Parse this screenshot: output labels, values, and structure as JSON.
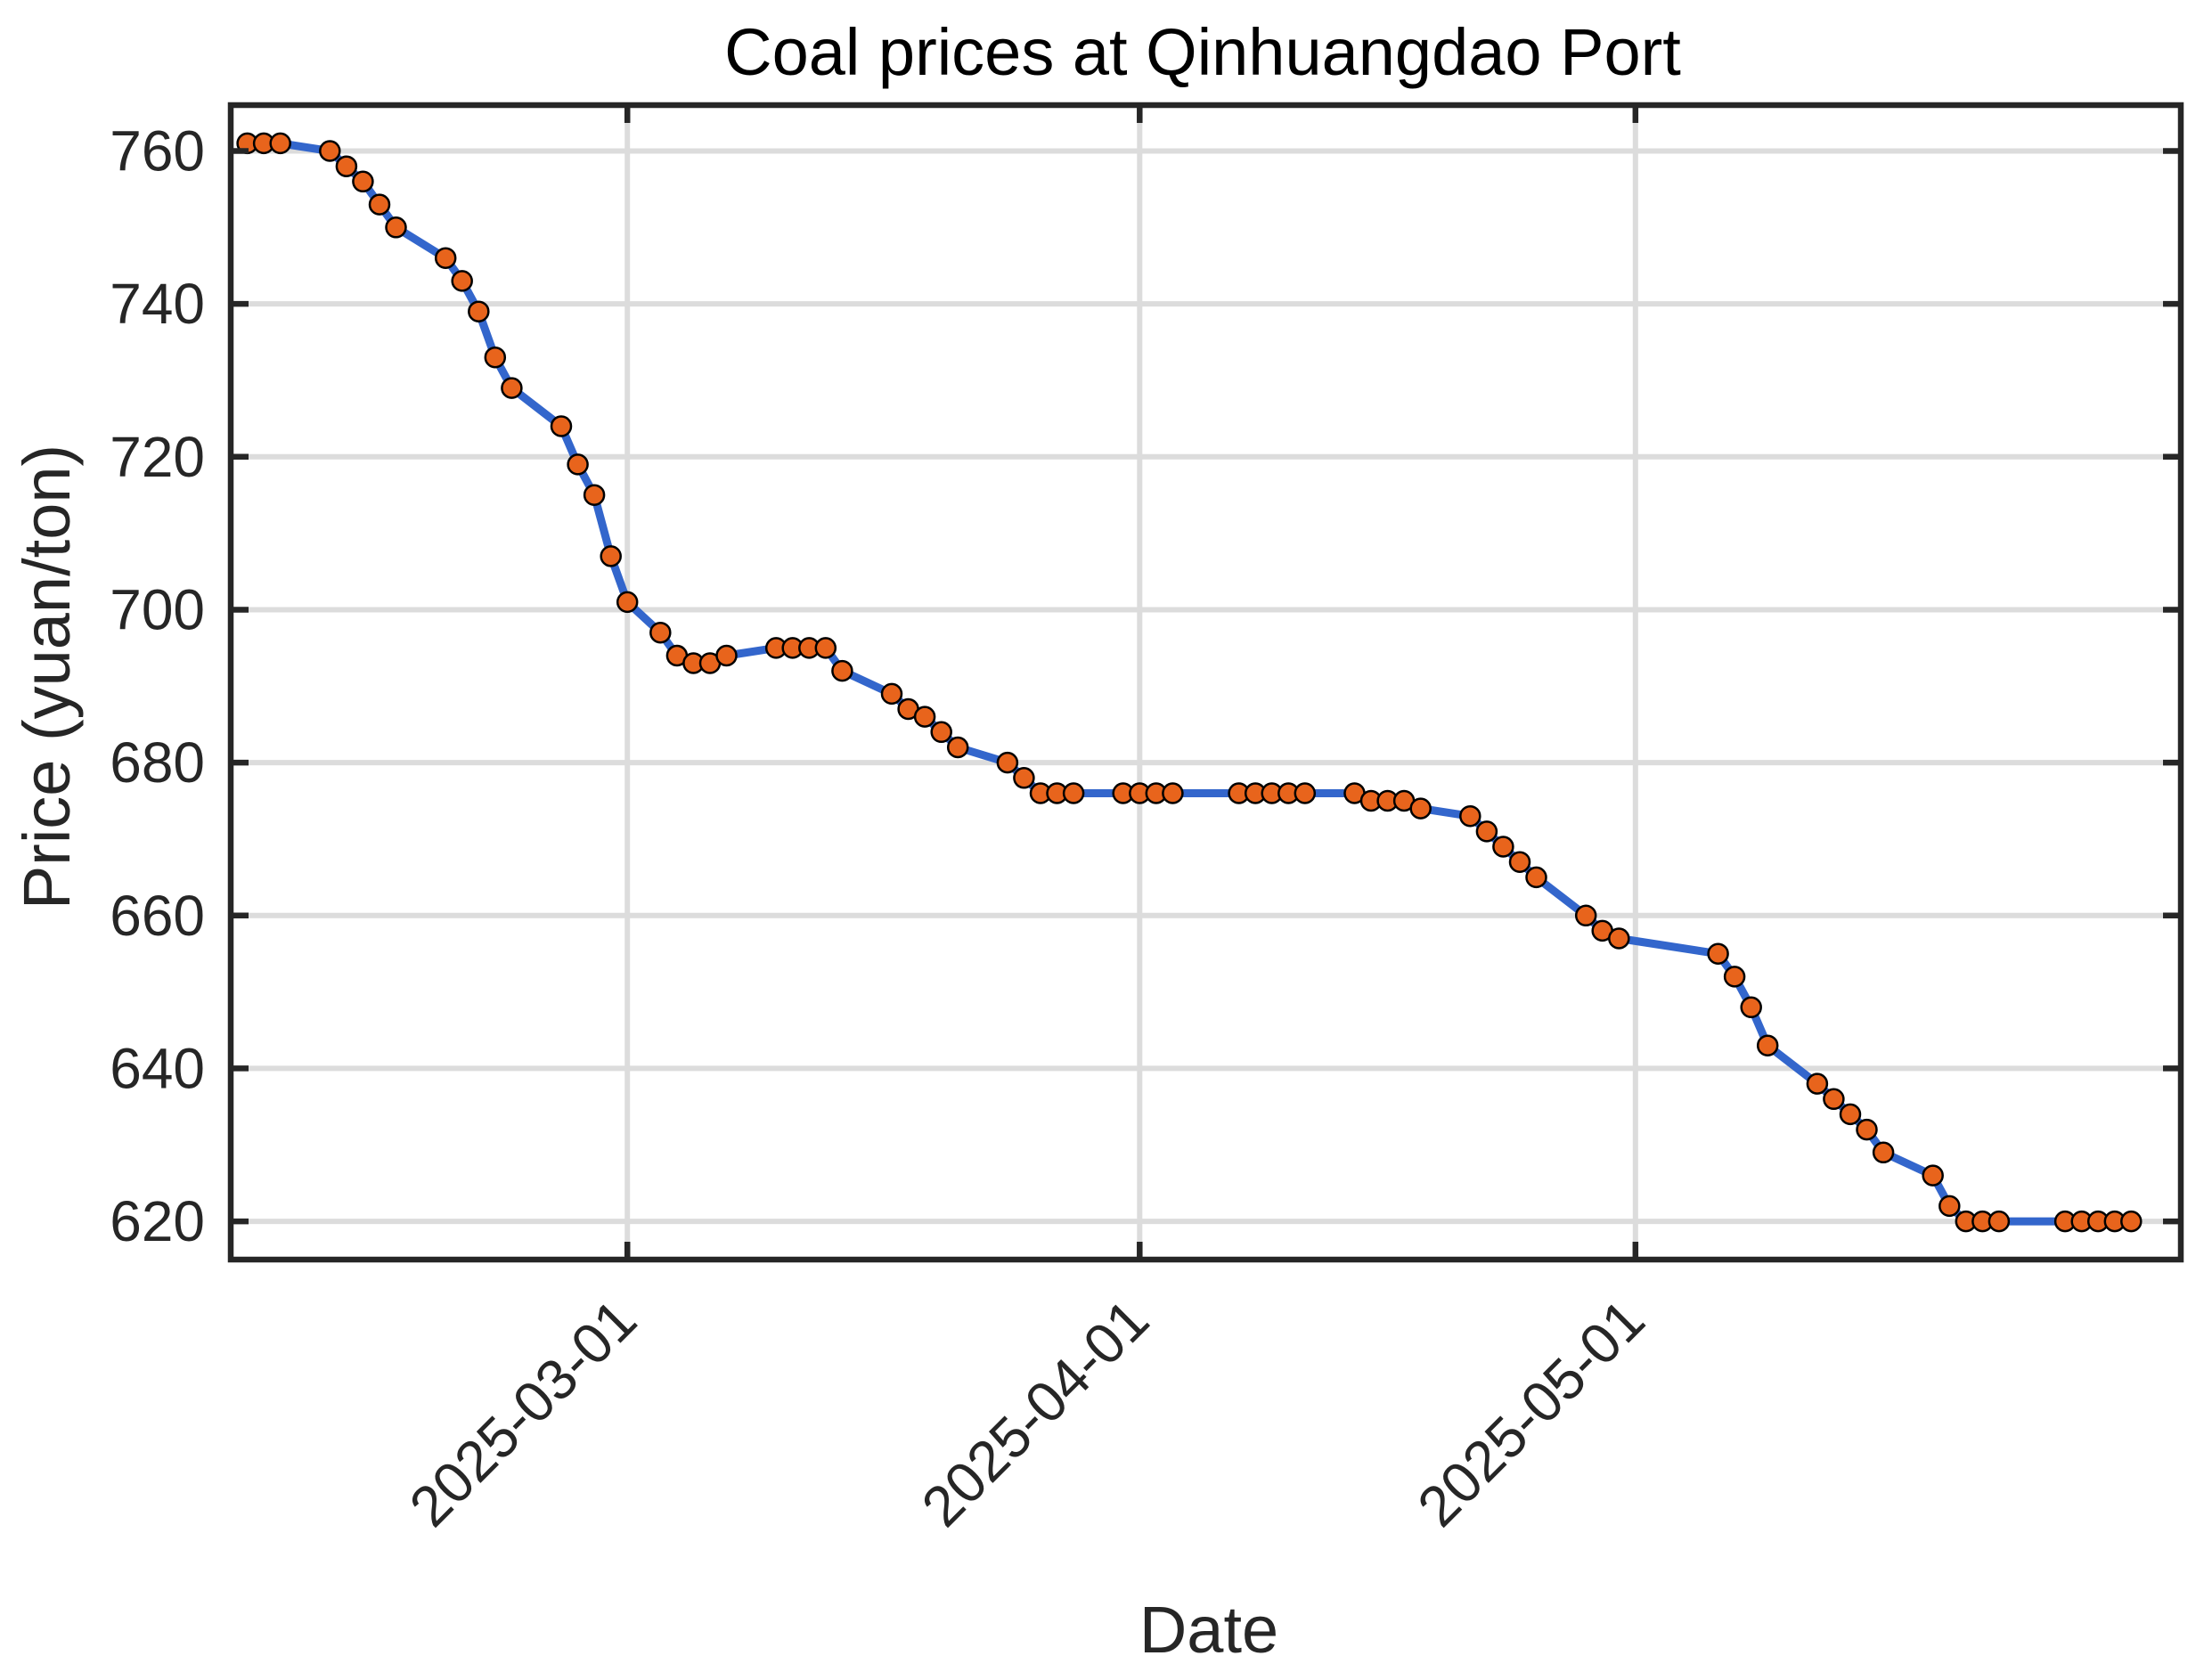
{
  "chart_data": {
    "type": "line",
    "title": "Coal prices at Qinhuangdao Port",
    "xlabel": "Date",
    "ylabel": "Price (yuan/ton)",
    "xlim": [
      "2025-02-05",
      "2025-06-03"
    ],
    "ylim": [
      615,
      766
    ],
    "x_ticks": [
      "2025-03-01",
      "2025-04-01",
      "2025-05-01"
    ],
    "y_ticks": [
      620,
      640,
      660,
      680,
      700,
      720,
      740,
      760
    ],
    "grid": true,
    "legend": "none",
    "colors": {
      "line": "#3366cc",
      "marker_fill": "#e8641c",
      "marker_edge": "#000000"
    },
    "series": [
      {
        "x": [
          "2025-02-06",
          "2025-02-07",
          "2025-02-08",
          "2025-02-11",
          "2025-02-12",
          "2025-02-13",
          "2025-02-14",
          "2025-02-15",
          "2025-02-18",
          "2025-02-19",
          "2025-02-20",
          "2025-02-21",
          "2025-02-22",
          "2025-02-25",
          "2025-02-26",
          "2025-02-27",
          "2025-02-28",
          "2025-03-01",
          "2025-03-03",
          "2025-03-04",
          "2025-03-05",
          "2025-03-06",
          "2025-03-07",
          "2025-03-10",
          "2025-03-11",
          "2025-03-12",
          "2025-03-13",
          "2025-03-14",
          "2025-03-17",
          "2025-03-18",
          "2025-03-19",
          "2025-03-20",
          "2025-03-21",
          "2025-03-24",
          "2025-03-25",
          "2025-03-26",
          "2025-03-27",
          "2025-03-28",
          "2025-03-31",
          "2025-04-01",
          "2025-04-02",
          "2025-04-03",
          "2025-04-07",
          "2025-04-08",
          "2025-04-09",
          "2025-04-10",
          "2025-04-11",
          "2025-04-14",
          "2025-04-15",
          "2025-04-16",
          "2025-04-17",
          "2025-04-18",
          "2025-04-21",
          "2025-04-22",
          "2025-04-23",
          "2025-04-24",
          "2025-04-25",
          "2025-04-28",
          "2025-04-29",
          "2025-04-30",
          "2025-05-06",
          "2025-05-07",
          "2025-05-08",
          "2025-05-09",
          "2025-05-12",
          "2025-05-13",
          "2025-05-14",
          "2025-05-15",
          "2025-05-16",
          "2025-05-19",
          "2025-05-20",
          "2025-05-21",
          "2025-05-22",
          "2025-05-23",
          "2025-05-27",
          "2025-05-28",
          "2025-05-29",
          "2025-05-30",
          "2025-05-31"
        ],
        "y": [
          761,
          761,
          761,
          760,
          758,
          756,
          753,
          750,
          746,
          743,
          739,
          733,
          729,
          724,
          719,
          715,
          707,
          701,
          697,
          694,
          693,
          693,
          694,
          695,
          695,
          695,
          695,
          692,
          689,
          687,
          686,
          684,
          682,
          680,
          678,
          676,
          676,
          676,
          676,
          676,
          676,
          676,
          676,
          676,
          676,
          676,
          676,
          676,
          675,
          675,
          675,
          674,
          673,
          671,
          669,
          667,
          665,
          660,
          658,
          657,
          655,
          652,
          648,
          643,
          638,
          636,
          634,
          632,
          629,
          626,
          622,
          620,
          620,
          620,
          620,
          620,
          620,
          620,
          620
        ]
      }
    ]
  }
}
